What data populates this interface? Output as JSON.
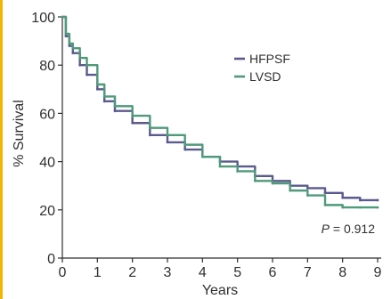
{
  "chart_data": {
    "type": "line",
    "title": "",
    "xlabel": "Years",
    "ylabel": "% Survival",
    "xlim": [
      0,
      9
    ],
    "ylim": [
      0,
      100
    ],
    "x_ticks": [
      "0",
      "1",
      "2",
      "3",
      "4",
      "5",
      "6",
      "7",
      "8",
      "9"
    ],
    "y_ticks": [
      "0",
      "20",
      "40",
      "60",
      "80",
      "100"
    ],
    "grid": false,
    "legend_position": "top-right",
    "annotation": {
      "p_label": "P",
      "p_value": "= 0.912"
    },
    "series": [
      {
        "name": "HFPSF",
        "color": "#5b5a8e",
        "x": [
          0,
          0.1,
          0.2,
          0.3,
          0.5,
          0.7,
          1.0,
          1.2,
          1.5,
          2.0,
          2.5,
          3.0,
          3.5,
          4.0,
          4.5,
          5.0,
          5.5,
          6.0,
          6.5,
          7.0,
          7.5,
          8.0,
          8.5,
          9.0
        ],
        "y": [
          100,
          92,
          88,
          85,
          80,
          76,
          70,
          65,
          61,
          56,
          51,
          48,
          45,
          42,
          40,
          38,
          34,
          32,
          30,
          29,
          27,
          25,
          24,
          24
        ]
      },
      {
        "name": "LVSD",
        "color": "#4f9a7a",
        "x": [
          0,
          0.1,
          0.2,
          0.3,
          0.5,
          0.7,
          1.0,
          1.2,
          1.5,
          2.0,
          2.5,
          3.0,
          3.5,
          4.0,
          4.5,
          5.0,
          5.5,
          6.0,
          6.5,
          7.0,
          7.5,
          8.0,
          8.5,
          9.0
        ],
        "y": [
          100,
          93,
          89,
          87,
          83,
          80,
          72,
          67,
          63,
          59,
          54,
          51,
          47,
          42,
          38,
          36,
          32,
          31,
          28,
          26,
          22,
          21,
          21,
          21
        ]
      }
    ]
  },
  "colors": {
    "axis": "#2f2f2f",
    "accent_bar": "#f4b400"
  }
}
